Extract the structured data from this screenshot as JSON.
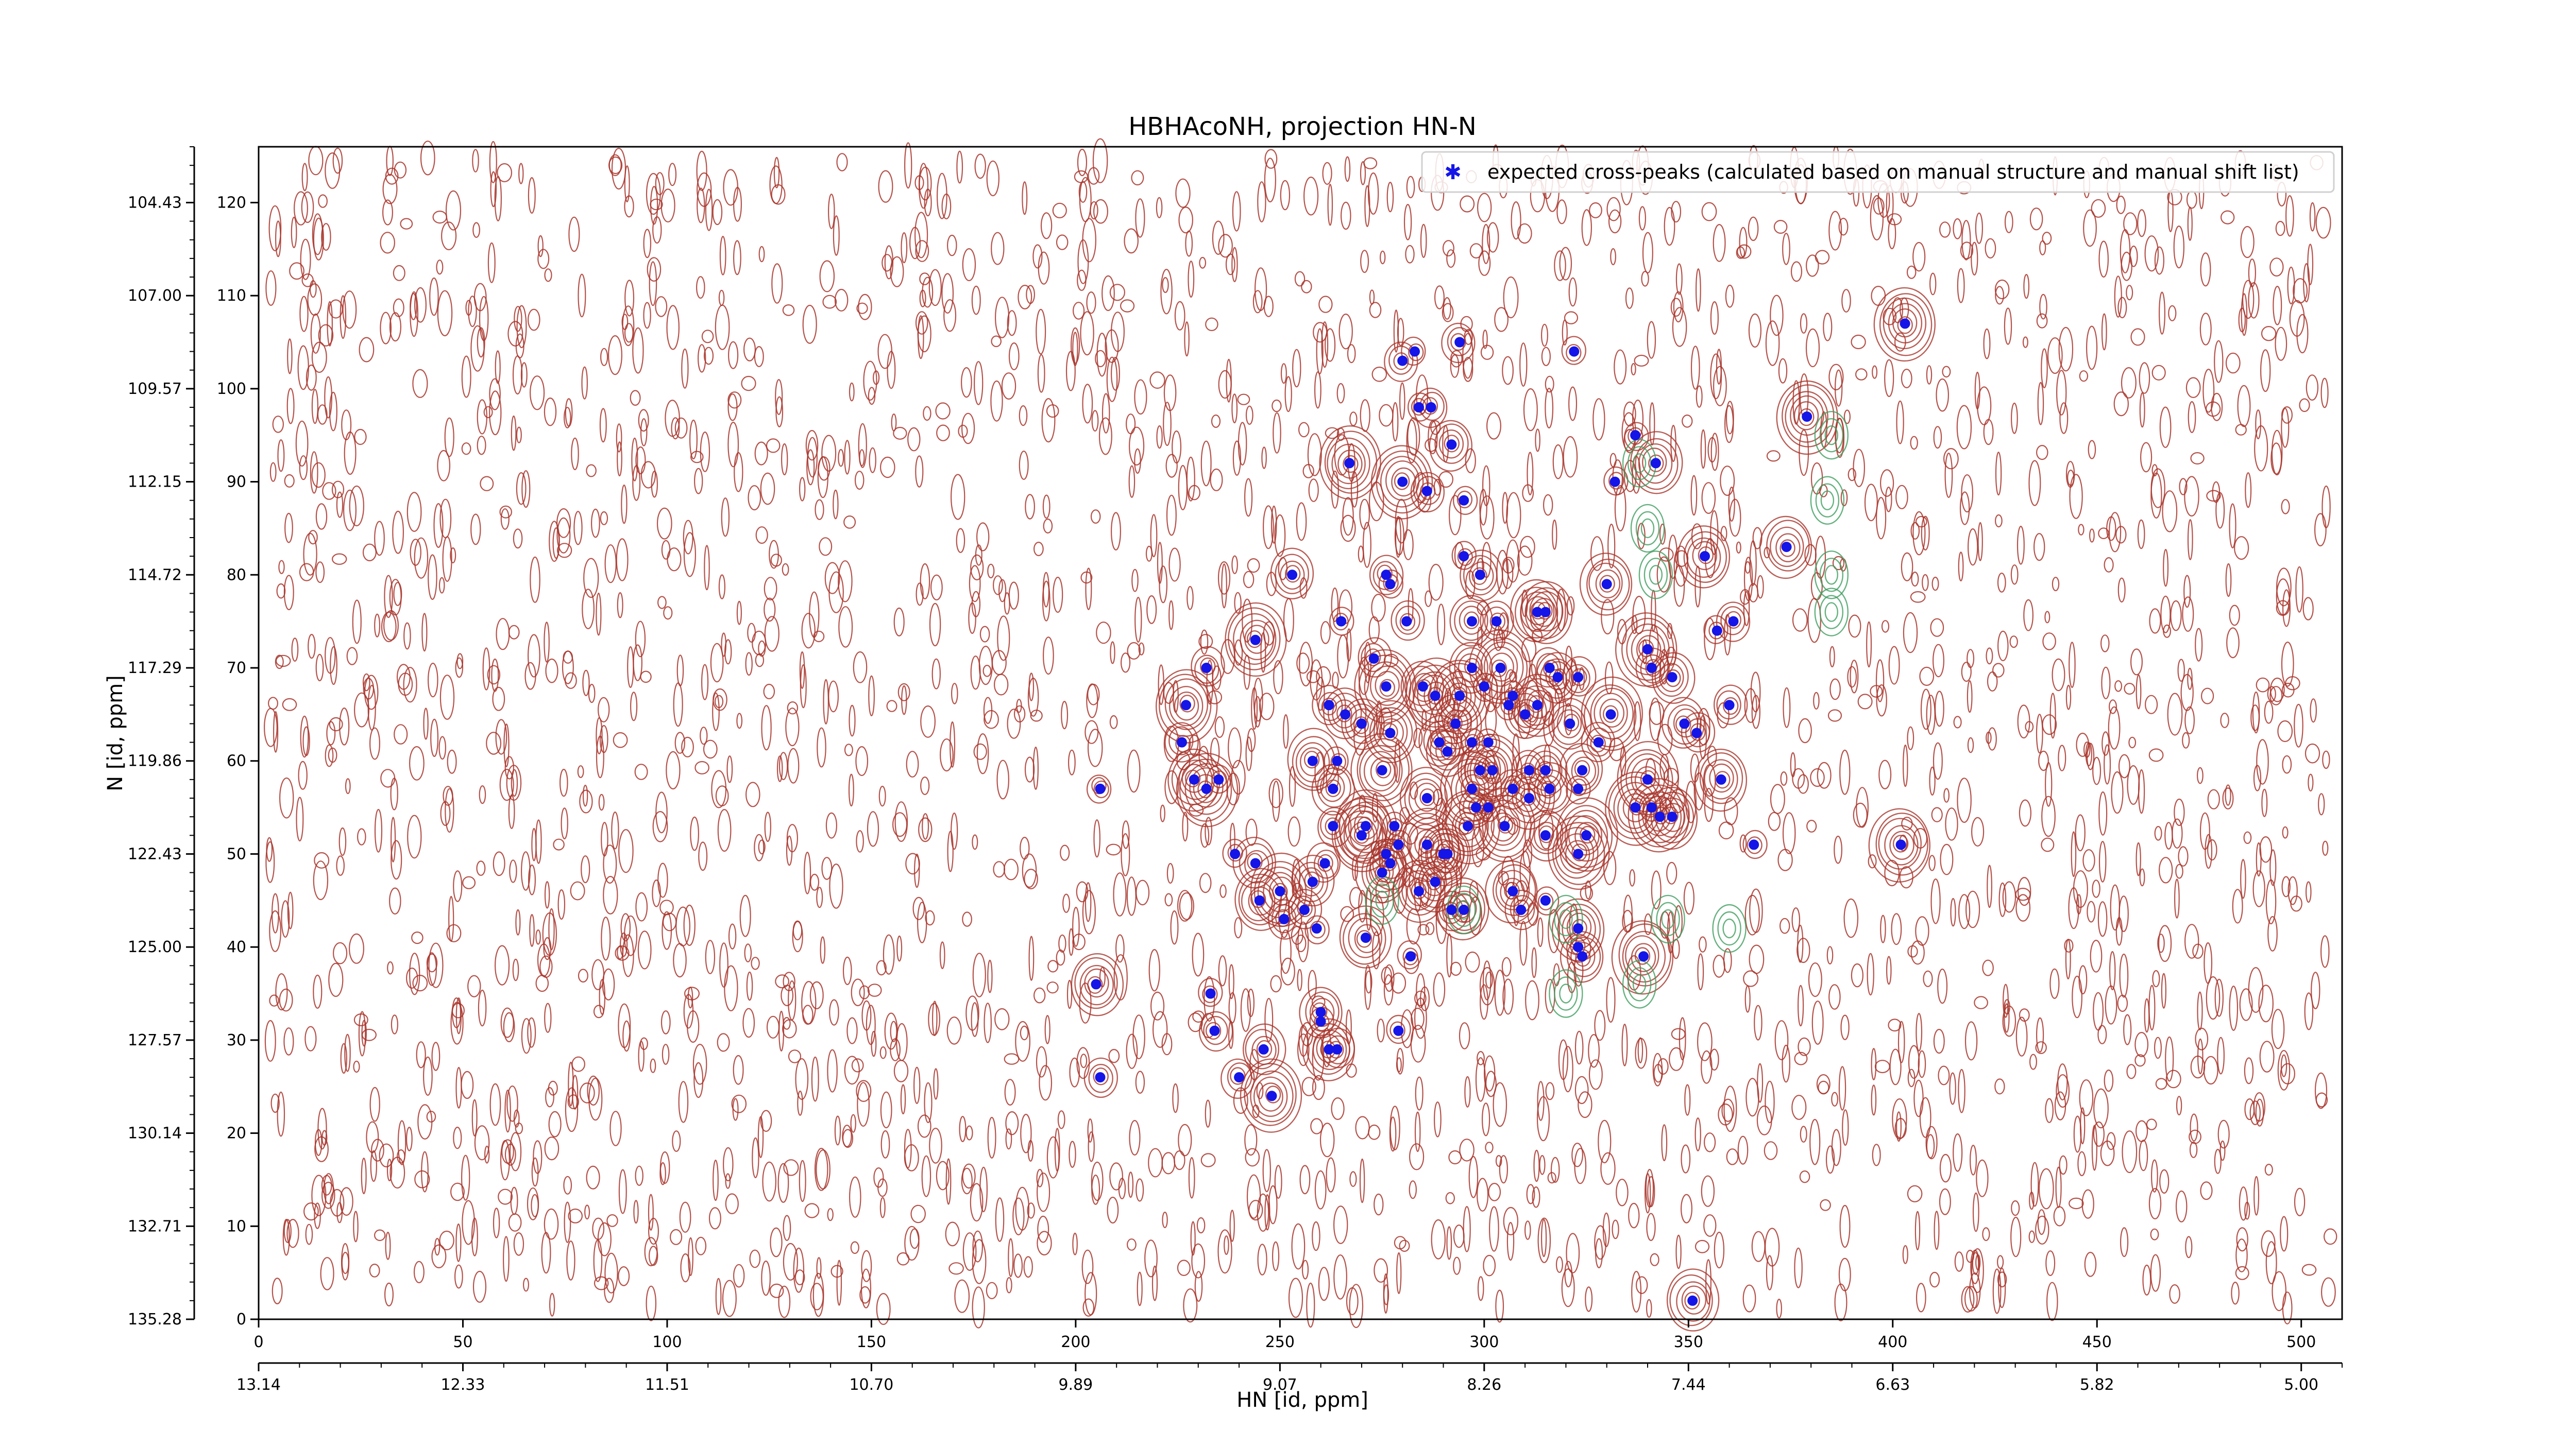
{
  "chart_data": {
    "type": "scatter",
    "title": "HBHAcoNH, projection HN-N",
    "xlabel": "HN [id, ppm]",
    "ylabel": "N [id, ppm]",
    "xlim": [
      0,
      510
    ],
    "ylim": [
      0,
      126
    ],
    "x_ticks": [
      0,
      50,
      100,
      150,
      200,
      250,
      300,
      350,
      400,
      450,
      500
    ],
    "y_ticks": [
      0,
      10,
      20,
      30,
      40,
      50,
      60,
      70,
      80,
      90,
      100,
      110,
      120
    ],
    "secondary_x_ticks": [
      "13.14",
      "12.33",
      "11.51",
      "10.70",
      "9.89",
      "9.07",
      "8.26",
      "7.44",
      "6.63",
      "5.82",
      "5.00"
    ],
    "secondary_y_ticks": [
      "135.28",
      "132.71",
      "130.14",
      "127.57",
      "125.00",
      "122.43",
      "119.86",
      "117.29",
      "114.72",
      "112.15",
      "109.57",
      "107.00",
      "104.43"
    ],
    "grid": false,
    "legend_position": "top-right",
    "colors": {
      "marker": "#1515e8",
      "positive_contour": "#a8342a",
      "negative_contour": "#3f9e5f"
    },
    "series": [
      {
        "name": "expected cross-peaks (calculated based on manual structure and manual shift list)",
        "points": [
          [
            280,
            103
          ],
          [
            283,
            104
          ],
          [
            294,
            105
          ],
          [
            322,
            104
          ],
          [
            403,
            107
          ],
          [
            284,
            98
          ],
          [
            287,
            98
          ],
          [
            292,
            94
          ],
          [
            286,
            89
          ],
          [
            295,
            88
          ],
          [
            267,
            92
          ],
          [
            280,
            90
          ],
          [
            337,
            95
          ],
          [
            379,
            97
          ],
          [
            342,
            92
          ],
          [
            332,
            90
          ],
          [
            374,
            83
          ],
          [
            354,
            82
          ],
          [
            295,
            82
          ],
          [
            299,
            80
          ],
          [
            253,
            80
          ],
          [
            276,
            80
          ],
          [
            277,
            79
          ],
          [
            330,
            79
          ],
          [
            281,
            75
          ],
          [
            297,
            75
          ],
          [
            303,
            75
          ],
          [
            313,
            76
          ],
          [
            315,
            76
          ],
          [
            265,
            75
          ],
          [
            361,
            75
          ],
          [
            244,
            73
          ],
          [
            357,
            74
          ],
          [
            232,
            70
          ],
          [
            273,
            71
          ],
          [
            340,
            72
          ],
          [
            341,
            70
          ],
          [
            346,
            69
          ],
          [
            360,
            66
          ],
          [
            297,
            70
          ],
          [
            304,
            70
          ],
          [
            316,
            70
          ],
          [
            318,
            69
          ],
          [
            276,
            68
          ],
          [
            285,
            68
          ],
          [
            300,
            68
          ],
          [
            306,
            66
          ],
          [
            307,
            67
          ],
          [
            288,
            67
          ],
          [
            294,
            67
          ],
          [
            313,
            66
          ],
          [
            323,
            69
          ],
          [
            262,
            66
          ],
          [
            266,
            65
          ],
          [
            310,
            65
          ],
          [
            331,
            65
          ],
          [
            270,
            64
          ],
          [
            277,
            63
          ],
          [
            293,
            64
          ],
          [
            349,
            64
          ],
          [
            352,
            63
          ],
          [
            227,
            66
          ],
          [
            226,
            62
          ],
          [
            328,
            62
          ],
          [
            321,
            64
          ],
          [
            289,
            62
          ],
          [
            297,
            62
          ],
          [
            301,
            62
          ],
          [
            291,
            61
          ],
          [
            258,
            60
          ],
          [
            264,
            60
          ],
          [
            324,
            59
          ],
          [
            275,
            59
          ],
          [
            299,
            59
          ],
          [
            302,
            59
          ],
          [
            311,
            59
          ],
          [
            315,
            59
          ],
          [
            235,
            58
          ],
          [
            232,
            57
          ],
          [
            229,
            58
          ],
          [
            297,
            57
          ],
          [
            307,
            57
          ],
          [
            311,
            56
          ],
          [
            316,
            57
          ],
          [
            323,
            57
          ],
          [
            340,
            58
          ],
          [
            358,
            58
          ],
          [
            206,
            57
          ],
          [
            263,
            57
          ],
          [
            286,
            56
          ],
          [
            298,
            55
          ],
          [
            301,
            55
          ],
          [
            337,
            55
          ],
          [
            305,
            53
          ],
          [
            278,
            53
          ],
          [
            296,
            53
          ],
          [
            315,
            52
          ],
          [
            325,
            52
          ],
          [
            343,
            54
          ],
          [
            346,
            54
          ],
          [
            277,
            49
          ],
          [
            286,
            51
          ],
          [
            263,
            53
          ],
          [
            279,
            51
          ],
          [
            341,
            55
          ],
          [
            271,
            53
          ],
          [
            276,
            50
          ],
          [
            290,
            50
          ],
          [
            239,
            50
          ],
          [
            244,
            49
          ],
          [
            261,
            49
          ],
          [
            291,
            50
          ],
          [
            323,
            50
          ],
          [
            366,
            51
          ],
          [
            402,
            51
          ],
          [
            270,
            52
          ],
          [
            275,
            48
          ],
          [
            284,
            46
          ],
          [
            258,
            47
          ],
          [
            250,
            46
          ],
          [
            245,
            45
          ],
          [
            288,
            47
          ],
          [
            292,
            44
          ],
          [
            295,
            44
          ],
          [
            256,
            44
          ],
          [
            307,
            46
          ],
          [
            309,
            44
          ],
          [
            315,
            45
          ],
          [
            251,
            43
          ],
          [
            259,
            42
          ],
          [
            271,
            41
          ],
          [
            282,
            39
          ],
          [
            323,
            42
          ],
          [
            323,
            40
          ],
          [
            324,
            39
          ],
          [
            339,
            39
          ],
          [
            205,
            36
          ],
          [
            233,
            35
          ],
          [
            234,
            31
          ],
          [
            260,
            33
          ],
          [
            260,
            32
          ],
          [
            279,
            31
          ],
          [
            262,
            29
          ],
          [
            264,
            29
          ],
          [
            246,
            29
          ],
          [
            240,
            26
          ],
          [
            248,
            24
          ],
          [
            206,
            26
          ],
          [
            351,
            2
          ]
        ]
      }
    ]
  }
}
